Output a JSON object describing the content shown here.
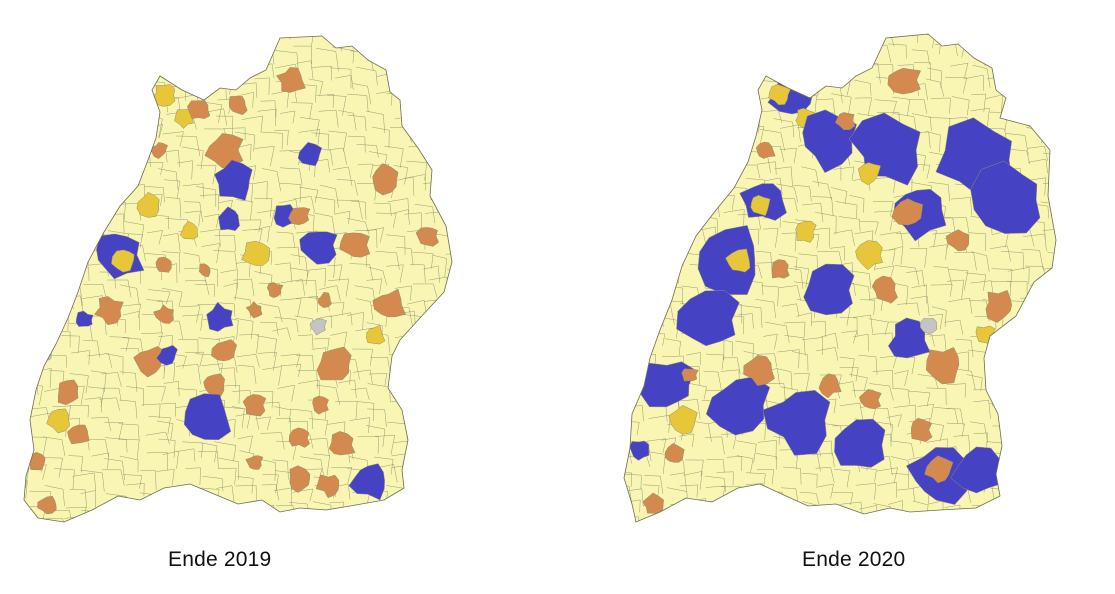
{
  "colors": {
    "base": "#f8f6b2",
    "border": "#8f8f6e",
    "orange": "#d48a4e",
    "yellow": "#e8c63a",
    "blue": "#4642c4",
    "grey": "#c4c4c4"
  },
  "legend_categories": [
    "base",
    "orange",
    "yellow",
    "blue",
    "grey"
  ],
  "maps": [
    {
      "caption": "Ende 2019"
    },
    {
      "caption": "Ende 2020"
    }
  ]
}
